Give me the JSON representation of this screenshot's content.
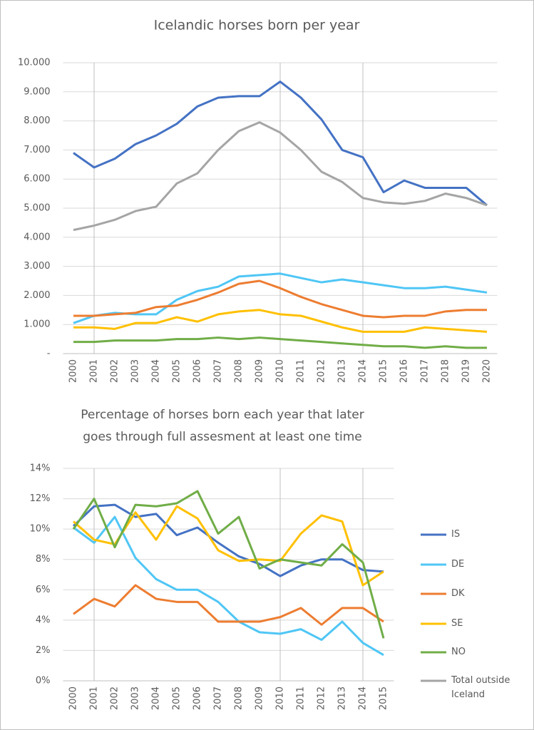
{
  "chart_data": [
    {
      "type": "line",
      "title": "Icelandic horses born per year",
      "categories": [
        "2000",
        "2001",
        "2002",
        "2003",
        "2004",
        "2005",
        "2006",
        "2007",
        "2008",
        "2009",
        "2010",
        "2011",
        "2012",
        "2013",
        "2014",
        "2015",
        "2016",
        "2017",
        "2018",
        "2019",
        "2020"
      ],
      "series": [
        {
          "color": "#4472c4",
          "values": [
            6900,
            6400,
            6700,
            7200,
            7500,
            7900,
            8500,
            8800,
            8850,
            8850,
            9350,
            8800,
            8050,
            7000,
            6750,
            5550,
            5950,
            5700,
            5700,
            5700,
            5100
          ]
        },
        {
          "color": "#a5a5a5",
          "values": [
            4250,
            4400,
            4600,
            4900,
            5050,
            5850,
            6200,
            7000,
            7650,
            7950,
            7600,
            7000,
            6250,
            5900,
            5350,
            5200,
            5150,
            5250,
            5500,
            5350,
            5100
          ]
        },
        {
          "color": "#4fc6f5",
          "values": [
            1050,
            1300,
            1400,
            1350,
            1350,
            1850,
            2150,
            2300,
            2650,
            2700,
            2750,
            2600,
            2450,
            2550,
            2450,
            2350,
            2250,
            2250,
            2300,
            2200,
            2100
          ]
        },
        {
          "color": "#ed7d31",
          "values": [
            1300,
            1300,
            1350,
            1400,
            1600,
            1650,
            1850,
            2100,
            2400,
            2500,
            2250,
            1950,
            1700,
            1500,
            1300,
            1250,
            1300,
            1300,
            1450,
            1500,
            1500
          ]
        },
        {
          "color": "#ffc000",
          "values": [
            900,
            900,
            850,
            1050,
            1050,
            1250,
            1100,
            1350,
            1450,
            1500,
            1350,
            1300,
            1100,
            900,
            750,
            750,
            750,
            900,
            850,
            800,
            750
          ]
        },
        {
          "color": "#70ad47",
          "values": [
            400,
            400,
            450,
            450,
            450,
            500,
            500,
            550,
            500,
            550,
            500,
            450,
            400,
            350,
            300,
            250,
            250,
            200,
            250,
            200,
            200
          ]
        }
      ],
      "ylim": [
        0,
        10000
      ],
      "yticks": [
        {
          "value": 0,
          "label": "-"
        },
        {
          "value": 1000,
          "label": "1.000"
        },
        {
          "value": 2000,
          "label": "2.000"
        },
        {
          "value": 3000,
          "label": "3.000"
        },
        {
          "value": 4000,
          "label": "4.000"
        },
        {
          "value": 5000,
          "label": "5.000"
        },
        {
          "value": 6000,
          "label": "6.000"
        },
        {
          "value": 7000,
          "label": "7.000"
        },
        {
          "value": 8000,
          "label": "8.000"
        },
        {
          "value": 9000,
          "label": "9.000"
        },
        {
          "value": 10000,
          "label": "10.000"
        }
      ],
      "grid": true,
      "vlines": [
        "2001",
        "2010",
        "2014"
      ]
    },
    {
      "type": "line",
      "title": [
        "Percentage of horses born each year that later",
        "goes through full assesment at least one time"
      ],
      "categories": [
        "2000",
        "2001",
        "2002",
        "2003",
        "2004",
        "2005",
        "2006",
        "2007",
        "2008",
        "2009",
        "2010",
        "2011",
        "2012",
        "2013",
        "2014",
        "2015"
      ],
      "series": [
        {
          "name": "IS",
          "color": "#4472c4",
          "values": [
            10.2,
            11.5,
            11.6,
            10.8,
            11.0,
            9.6,
            10.1,
            9.1,
            8.2,
            7.7,
            6.9,
            7.6,
            8.0,
            8.0,
            7.3,
            7.2
          ]
        },
        {
          "name": "DE",
          "color": "#4fc6f5",
          "values": [
            10.1,
            9.1,
            10.8,
            8.1,
            6.7,
            6.0,
            6.0,
            5.2,
            3.9,
            3.2,
            3.1,
            3.4,
            2.7,
            3.9,
            2.5,
            1.7
          ]
        },
        {
          "name": "DK",
          "color": "#ed7d31",
          "values": [
            4.4,
            5.4,
            4.9,
            6.3,
            5.4,
            5.2,
            5.2,
            3.9,
            3.9,
            3.9,
            4.2,
            4.8,
            3.7,
            4.8,
            4.8,
            3.9
          ]
        },
        {
          "name": "SE",
          "color": "#ffc000",
          "values": [
            10.5,
            9.3,
            9.0,
            11.1,
            9.3,
            11.5,
            10.7,
            8.6,
            7.9,
            8.0,
            7.9,
            9.7,
            10.9,
            10.5,
            6.3,
            7.2
          ]
        },
        {
          "name": "NO",
          "color": "#70ad47",
          "values": [
            10.0,
            12.0,
            8.8,
            11.6,
            11.5,
            11.7,
            12.5,
            9.7,
            10.8,
            7.4,
            8.0,
            7.8,
            7.6,
            9.0,
            7.8,
            2.8
          ]
        },
        {
          "name": "Total outside Iceland",
          "color": "#a5a5a5",
          "values": [
            null,
            null,
            null,
            null,
            null,
            null,
            null,
            null,
            null,
            null,
            null,
            null,
            null,
            null,
            null,
            null
          ]
        }
      ],
      "ylim": [
        0,
        14
      ],
      "yticks": [
        {
          "value": 0,
          "label": "0%"
        },
        {
          "value": 2,
          "label": "2%"
        },
        {
          "value": 4,
          "label": "4%"
        },
        {
          "value": 6,
          "label": "6%"
        },
        {
          "value": 8,
          "label": "8%"
        },
        {
          "value": 10,
          "label": "10%"
        },
        {
          "value": 12,
          "label": "12%"
        },
        {
          "value": 14,
          "label": "14%"
        }
      ],
      "grid": true,
      "vlines": [
        "2001",
        "2010",
        "2014"
      ],
      "legend": "right"
    }
  ]
}
